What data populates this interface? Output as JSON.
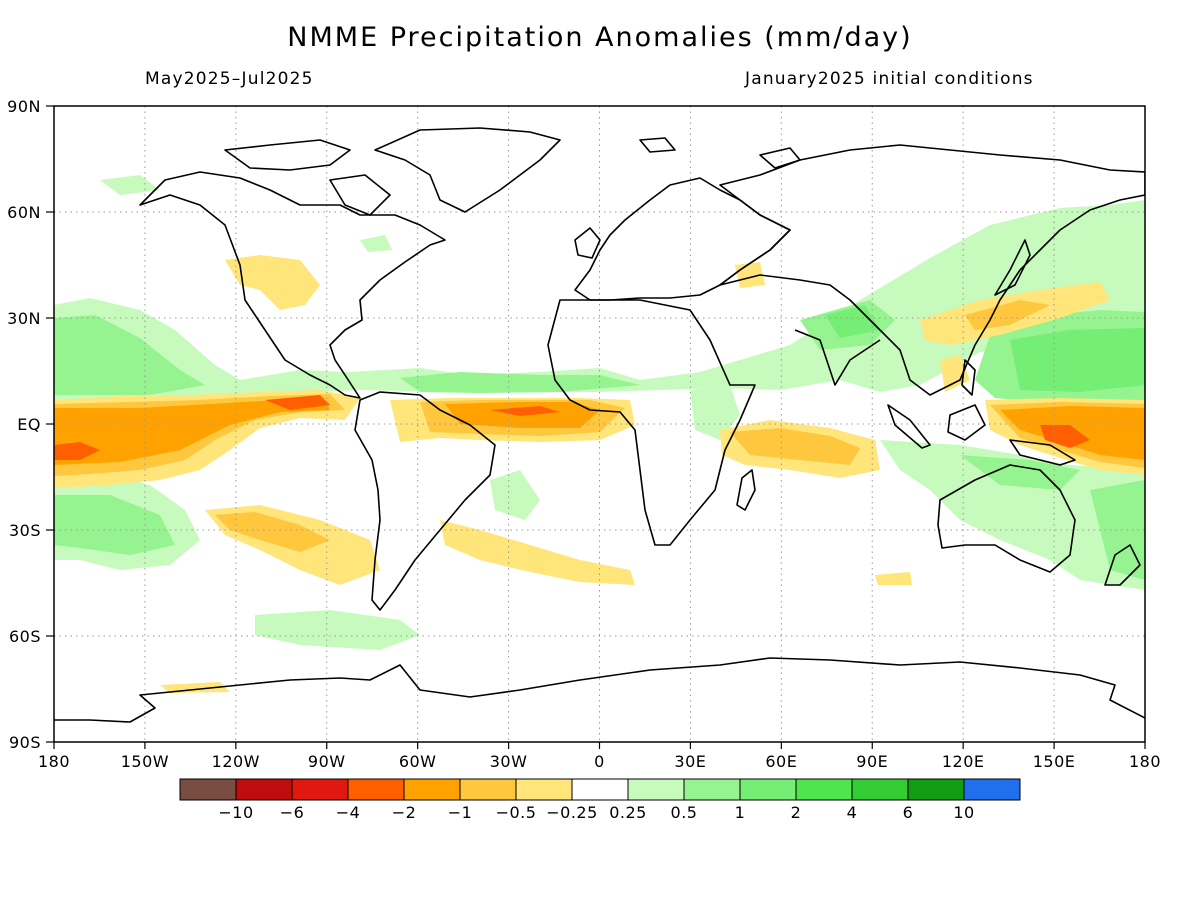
{
  "title": "NMME Precipitation Anomalies (mm/day)",
  "left_subtitle": "May2025–Jul2025",
  "right_subtitle": "January2025 initial conditions",
  "map": {
    "projection": "equirectangular",
    "lon_range": [
      -180,
      180
    ],
    "lat_range": [
      -90,
      90
    ],
    "grid": "dotted",
    "lat_ticks": [
      {
        "value": 90,
        "label": "90N"
      },
      {
        "value": 60,
        "label": "60N"
      },
      {
        "value": 30,
        "label": "30N"
      },
      {
        "value": 0,
        "label": "EQ"
      },
      {
        "value": -30,
        "label": "30S"
      },
      {
        "value": -60,
        "label": "60S"
      },
      {
        "value": -90,
        "label": "90S"
      }
    ],
    "lon_ticks": [
      {
        "value": -180,
        "label": "180"
      },
      {
        "value": -150,
        "label": "150W"
      },
      {
        "value": -120,
        "label": "120W"
      },
      {
        "value": -90,
        "label": "90W"
      },
      {
        "value": -60,
        "label": "60W"
      },
      {
        "value": -30,
        "label": "30W"
      },
      {
        "value": 0,
        "label": "0"
      },
      {
        "value": 30,
        "label": "30E"
      },
      {
        "value": 60,
        "label": "60E"
      },
      {
        "value": 90,
        "label": "90E"
      },
      {
        "value": 120,
        "label": "120E"
      },
      {
        "value": 150,
        "label": "150E"
      },
      {
        "value": 180,
        "label": "180"
      }
    ]
  },
  "colorbar": {
    "colors": [
      "#7a4d43",
      "#bf0c0c",
      "#e0180f",
      "#ff5f00",
      "#ffa200",
      "#ffc73d",
      "#ffe57a",
      "#ffffff",
      "#c7fbbd",
      "#95f48f",
      "#74ee74",
      "#4ee54e",
      "#33cc33",
      "#129c12",
      "#2070ee"
    ],
    "labels": [
      "−10",
      "−6",
      "−4",
      "−2",
      "−1",
      "−0.5",
      "−0.25",
      "0.25",
      "0.5",
      "1",
      "2",
      "4",
      "6",
      "10"
    ]
  },
  "fields": [
    {
      "lon": -150,
      "lat": 3,
      "value": -2
    },
    {
      "lon": -165,
      "lat": -5,
      "value": -2
    },
    {
      "lon": -95,
      "lat": 5,
      "value": -1
    },
    {
      "lon": -25,
      "lat": 3,
      "value": -2
    },
    {
      "lon": 55,
      "lat": -5,
      "value": -1
    },
    {
      "lon": 160,
      "lat": -2,
      "value": -2
    },
    {
      "lon": 168,
      "lat": -3,
      "value": -4
    },
    {
      "lon": -100,
      "lat": 40,
      "value": -0.5
    },
    {
      "lon": -120,
      "lat": -30,
      "value": -0.5
    },
    {
      "lon": -20,
      "lat": -37,
      "value": -0.5
    },
    {
      "lon": 155,
      "lat": 28,
      "value": -0.5
    },
    {
      "lon": -160,
      "lat": 20,
      "value": 1
    },
    {
      "lon": -160,
      "lat": -30,
      "value": 1
    },
    {
      "lon": 165,
      "lat": 20,
      "value": 1
    },
    {
      "lon": 130,
      "lat": -8,
      "value": 1
    },
    {
      "lon": 80,
      "lat": 30,
      "value": 1
    },
    {
      "lon": 120,
      "lat": 50,
      "value": 0.5
    },
    {
      "lon": -10,
      "lat": 12,
      "value": 0.5
    },
    {
      "lon": -100,
      "lat": -60,
      "value": 0.5
    }
  ]
}
